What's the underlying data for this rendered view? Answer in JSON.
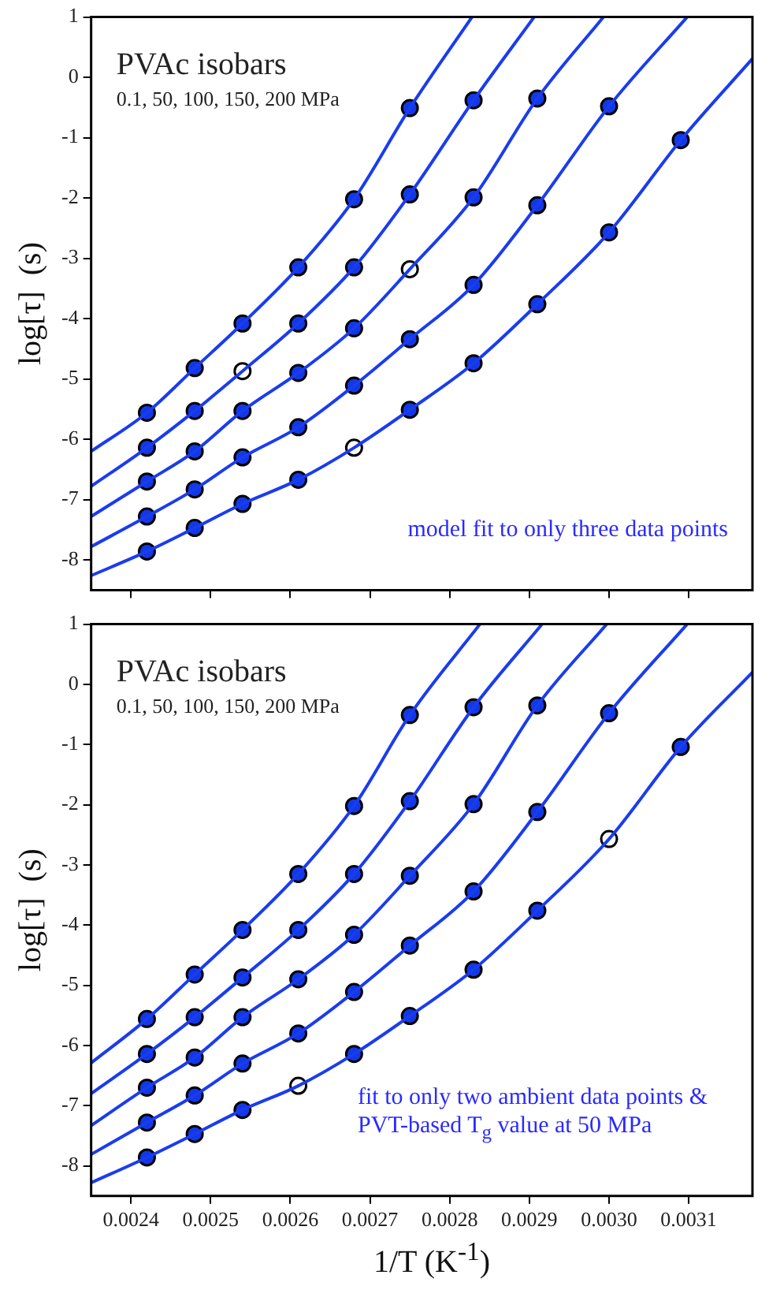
{
  "chart_data": [
    {
      "type": "scatter",
      "title": "PVAc isobars",
      "subtitle": "0.1, 50, 100, 150, 200 MPa",
      "ylabel": "log[τ]  (s)",
      "annotations": [
        "model fit to only three data points"
      ],
      "xlim": [
        0.00235,
        0.00318
      ],
      "xticks": [
        0.0024,
        0.0025,
        0.0026,
        0.0027,
        0.0028,
        0.0029,
        0.003,
        0.0031
      ],
      "ylim": [
        -8.5,
        1
      ],
      "yticks": [
        -8,
        -7,
        -6,
        -5,
        -4,
        -3,
        -2,
        -1,
        0,
        1
      ],
      "tick_labels": "y",
      "grid": false,
      "legend": false,
      "series": [
        {
          "type": "line",
          "marker": "none",
          "color": "#1a3cf0",
          "x": [
            0.00235,
            0.00242,
            0.00248,
            0.00254,
            0.00261,
            0.00268,
            0.00275,
            0.002828
          ],
          "values": [
            -6.2,
            -5.56,
            -4.82,
            -4.08,
            -3.15,
            -2.02,
            -0.51,
            1
          ]
        },
        {
          "type": "line",
          "marker": "none",
          "color": "#1a3cf0",
          "x": [
            0.00235,
            0.00242,
            0.00248,
            0.00254,
            0.00261,
            0.00268,
            0.00275,
            0.00283,
            0.002906
          ],
          "values": [
            -6.78,
            -6.14,
            -5.53,
            -4.87,
            -4.08,
            -3.15,
            -1.94,
            -0.38,
            1
          ]
        },
        {
          "type": "line",
          "marker": "none",
          "color": "#1a3cf0",
          "x": [
            0.00235,
            0.00242,
            0.00248,
            0.00254,
            0.00261,
            0.00268,
            0.00275,
            0.00283,
            0.00291,
            0.002993
          ],
          "values": [
            -7.28,
            -6.7,
            -6.2,
            -5.53,
            -4.9,
            -4.16,
            -3.18,
            -1.99,
            -0.35,
            1
          ]
        },
        {
          "type": "line",
          "marker": "none",
          "color": "#1a3cf0",
          "x": [
            0.00235,
            0.00242,
            0.00248,
            0.00254,
            0.00261,
            0.00268,
            0.00275,
            0.00283,
            0.00291,
            0.003,
            0.003098
          ],
          "values": [
            -7.78,
            -7.28,
            -6.83,
            -6.3,
            -5.8,
            -5.11,
            -4.34,
            -3.44,
            -2.12,
            -0.48,
            1
          ]
        },
        {
          "type": "line",
          "marker": "none",
          "color": "#1a3cf0",
          "x": [
            0.00235,
            0.00242,
            0.00248,
            0.00254,
            0.00261,
            0.00268,
            0.00275,
            0.00283,
            0.00291,
            0.003,
            0.00309,
            0.00318
          ],
          "values": [
            -8.26,
            -7.86,
            -7.47,
            -7.07,
            -6.67,
            -6.14,
            -5.51,
            -4.74,
            -3.76,
            -2.57,
            -1.04,
            0.31
          ]
        },
        {
          "type": "scatter",
          "marker": "circle",
          "color": "#1238e6",
          "x": [
            0.00242,
            0.00248,
            0.00254,
            0.00261,
            0.00268,
            0.00275
          ],
          "values": [
            -5.56,
            -4.82,
            -4.08,
            -3.15,
            -2.02,
            -0.51
          ]
        },
        {
          "type": "scatter",
          "marker": "circle",
          "color": "#1238e6",
          "x": [
            0.00242,
            0.00248,
            0.00261,
            0.00268,
            0.00275,
            0.00283
          ],
          "values": [
            -6.14,
            -5.53,
            -4.08,
            -3.15,
            -1.94,
            -0.38
          ]
        },
        {
          "type": "scatter",
          "marker": "circle",
          "color": "#1238e6",
          "x": [
            0.00242,
            0.00248,
            0.00254,
            0.00261,
            0.00268,
            0.00283,
            0.00291
          ],
          "values": [
            -6.7,
            -6.2,
            -5.53,
            -4.9,
            -4.16,
            -1.99,
            -0.35
          ]
        },
        {
          "type": "scatter",
          "marker": "circle",
          "color": "#1238e6",
          "x": [
            0.00242,
            0.00248,
            0.00254,
            0.00261,
            0.00268,
            0.00275,
            0.00283,
            0.00291,
            0.003
          ],
          "values": [
            -7.28,
            -6.83,
            -6.3,
            -5.8,
            -5.11,
            -4.34,
            -3.44,
            -2.12,
            -0.48
          ]
        },
        {
          "type": "scatter",
          "marker": "circle",
          "color": "#1238e6",
          "x": [
            0.00242,
            0.00248,
            0.00254,
            0.00261,
            0.00275,
            0.00283,
            0.00291,
            0.003,
            0.00309
          ],
          "values": [
            -7.86,
            -7.47,
            -7.07,
            -6.67,
            -5.51,
            -4.74,
            -3.76,
            -2.57,
            -1.04
          ]
        },
        {
          "type": "scatter",
          "marker": "circle",
          "color": "#ffffff",
          "x": [
            0.00254,
            0.00275,
            0.00268
          ],
          "values": [
            -4.87,
            -3.18,
            -6.14
          ]
        }
      ]
    },
    {
      "type": "scatter",
      "title": "PVAc isobars",
      "subtitle": "0.1, 50, 100, 150, 200 MPa",
      "xlabel": "1/T   (K$^{-1}$)",
      "ylabel": "log[τ]  (s)",
      "annotations": [
        "fit to only two ambient data points & PVT-based T$_{g}$ value at 50 MPa"
      ],
      "xlim": [
        0.00235,
        0.00318
      ],
      "xticks": [
        0.0024,
        0.0025,
        0.0026,
        0.0027,
        0.0028,
        0.0029,
        {
          "value": 0.003,
          "label": "0.0030"
        },
        0.0031
      ],
      "ylim": [
        -8.5,
        1
      ],
      "yticks": [
        -8,
        -7,
        -6,
        -5,
        -4,
        -3,
        -2,
        -1,
        0,
        1
      ],
      "grid": false,
      "legend": false,
      "series": [
        {
          "type": "line",
          "marker": "none",
          "color": "#1a3cf0",
          "x": [
            0.00235,
            0.00242,
            0.00248,
            0.00254,
            0.00261,
            0.00268,
            0.00275,
            0.002838
          ],
          "values": [
            -6.29,
            -5.56,
            -4.82,
            -4.08,
            -3.15,
            -2.02,
            -0.51,
            1
          ]
        },
        {
          "type": "line",
          "marker": "none",
          "color": "#1a3cf0",
          "x": [
            0.00235,
            0.00242,
            0.00248,
            0.00254,
            0.00261,
            0.00268,
            0.00275,
            0.00283,
            0.002916
          ],
          "values": [
            -6.8,
            -6.14,
            -5.53,
            -4.87,
            -4.08,
            -3.15,
            -1.94,
            -0.38,
            1
          ]
        },
        {
          "type": "line",
          "marker": "none",
          "color": "#1a3cf0",
          "x": [
            0.00235,
            0.00242,
            0.00248,
            0.00254,
            0.00261,
            0.00268,
            0.00275,
            0.00283,
            0.00291,
            0.002997
          ],
          "values": [
            -7.33,
            -6.7,
            -6.2,
            -5.53,
            -4.9,
            -4.16,
            -3.18,
            -1.99,
            -0.35,
            1
          ]
        },
        {
          "type": "line",
          "marker": "none",
          "color": "#1a3cf0",
          "x": [
            0.00235,
            0.00242,
            0.00248,
            0.00254,
            0.00261,
            0.00268,
            0.00275,
            0.00283,
            0.00291,
            0.003,
            0.003098
          ],
          "values": [
            -7.81,
            -7.28,
            -6.83,
            -6.3,
            -5.8,
            -5.11,
            -4.34,
            -3.44,
            -2.12,
            -0.48,
            1
          ]
        },
        {
          "type": "line",
          "marker": "none",
          "color": "#1a3cf0",
          "x": [
            0.00235,
            0.00242,
            0.00248,
            0.00254,
            0.00261,
            0.00268,
            0.00275,
            0.00283,
            0.00291,
            0.003,
            0.00309,
            0.00318
          ],
          "values": [
            -8.28,
            -7.86,
            -7.47,
            -7.07,
            -6.67,
            -6.14,
            -5.51,
            -4.74,
            -3.76,
            -2.57,
            -1.04,
            0.2
          ]
        },
        {
          "type": "scatter",
          "marker": "circle",
          "color": "#1238e6",
          "x": [
            0.00242,
            0.00248,
            0.00254,
            0.00261,
            0.00268,
            0.00275
          ],
          "values": [
            -5.56,
            -4.82,
            -4.08,
            -3.15,
            -2.02,
            -0.51
          ]
        },
        {
          "type": "scatter",
          "marker": "circle",
          "color": "#1238e6",
          "x": [
            0.00242,
            0.00248,
            0.00254,
            0.00261,
            0.00268,
            0.00275,
            0.00283
          ],
          "values": [
            -6.14,
            -5.53,
            -4.87,
            -4.08,
            -3.15,
            -1.94,
            -0.38
          ]
        },
        {
          "type": "scatter",
          "marker": "circle",
          "color": "#1238e6",
          "x": [
            0.00242,
            0.00248,
            0.00254,
            0.00261,
            0.00268,
            0.00275,
            0.00283,
            0.00291
          ],
          "values": [
            -6.7,
            -6.2,
            -5.53,
            -4.9,
            -4.16,
            -3.18,
            -1.99,
            -0.35
          ]
        },
        {
          "type": "scatter",
          "marker": "circle",
          "color": "#1238e6",
          "x": [
            0.00242,
            0.00248,
            0.00254,
            0.00261,
            0.00268,
            0.00275,
            0.00283,
            0.00291,
            0.003
          ],
          "values": [
            -7.28,
            -6.83,
            -6.3,
            -5.8,
            -5.11,
            -4.34,
            -3.44,
            -2.12,
            -0.48
          ]
        },
        {
          "type": "scatter",
          "marker": "circle",
          "color": "#1238e6",
          "x": [
            0.00242,
            0.00248,
            0.00254,
            0.00268,
            0.00275,
            0.00283,
            0.00291,
            0.00309
          ],
          "values": [
            -7.86,
            -7.47,
            -7.07,
            -6.14,
            -5.51,
            -4.74,
            -3.76,
            -1.04
          ]
        },
        {
          "type": "scatter",
          "marker": "circle",
          "color": "#ffffff",
          "x": [
            0.00261,
            0.003
          ],
          "values": [
            -6.67,
            -2.57
          ]
        }
      ]
    }
  ]
}
